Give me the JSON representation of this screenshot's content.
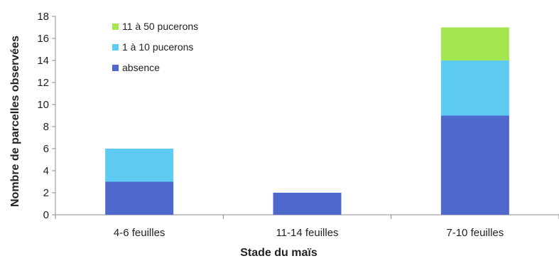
{
  "chart_data": {
    "type": "bar",
    "stacked": true,
    "title": "",
    "xlabel": "Stade du maïs",
    "ylabel": "Nombre de parcelles observées",
    "ylim": [
      0,
      18
    ],
    "yticks": [
      0,
      2,
      4,
      6,
      8,
      10,
      12,
      14,
      16,
      18
    ],
    "categories": [
      "4-6 feuilles",
      "11-14 feuilles",
      "7-10 feuilles"
    ],
    "series": [
      {
        "name": "absence",
        "color": "#4F68CC",
        "values": [
          3,
          2,
          9
        ]
      },
      {
        "name": "1 à 10 pucerons",
        "color": "#5ECCF2",
        "values": [
          3,
          0,
          5
        ]
      },
      {
        "name": "11 à 50 pucerons",
        "color": "#A5E74F",
        "values": [
          0,
          0,
          3
        ]
      }
    ],
    "legend_order": [
      "11 à 50 pucerons",
      "1 à 10 pucerons",
      "absence"
    ],
    "legend_position": "top-left",
    "grid": false
  }
}
